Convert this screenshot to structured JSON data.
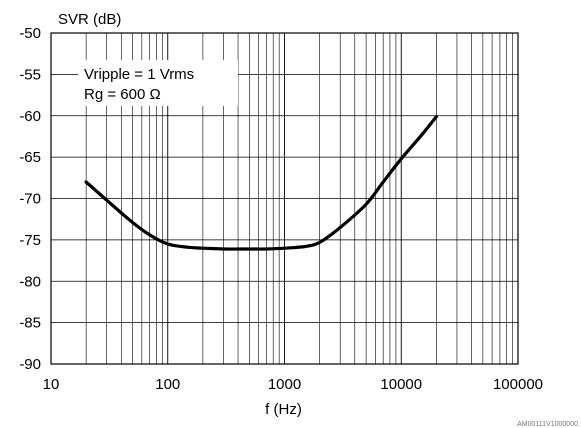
{
  "chart_data": {
    "type": "line",
    "title": "",
    "xlabel": "f (Hz)",
    "ylabel": "SVR (dB)",
    "xscale": "log",
    "xlim": [
      10,
      100000
    ],
    "ylim": [
      -90,
      -50
    ],
    "xticks": [
      10,
      100,
      1000,
      10000,
      100000
    ],
    "xtick_labels": [
      "10",
      "100",
      "1000",
      "10000",
      "100000"
    ],
    "yticks": [
      -50,
      -55,
      -60,
      -65,
      -70,
      -75,
      -80,
      -85,
      -90
    ],
    "ytick_labels": [
      "-50",
      "-55",
      "-60",
      "-65",
      "-70",
      "-75",
      "-80",
      "-85",
      "-90"
    ],
    "grid": true,
    "annotations": [
      "Vripple = 1 Vrms",
      "Rg = 600 Ω"
    ],
    "footer_code": "AM00111V1000000",
    "series": [
      {
        "color": "#000000",
        "x": [
          20,
          30,
          50,
          70,
          100,
          150,
          200,
          300,
          500,
          700,
          1000,
          1500,
          2000,
          3000,
          5000,
          7000,
          10000,
          15000,
          20000
        ],
        "y": [
          -68,
          -70.2,
          -72.9,
          -74.4,
          -75.5,
          -75.9,
          -76.0,
          -76.1,
          -76.1,
          -76.1,
          -76.0,
          -75.8,
          -75.3,
          -73.5,
          -70.7,
          -68.0,
          -65.2,
          -62.3,
          -60.1
        ]
      }
    ]
  }
}
